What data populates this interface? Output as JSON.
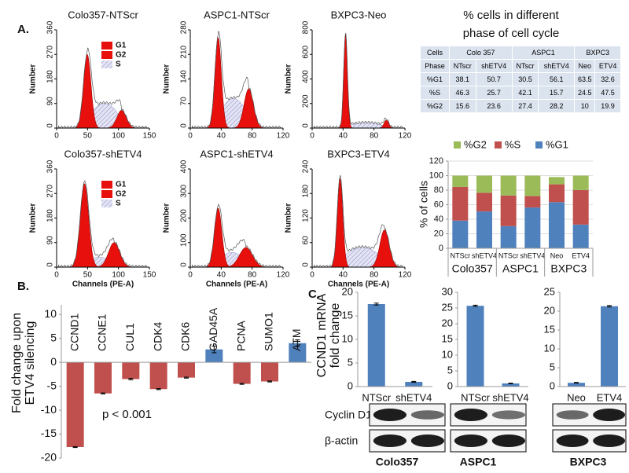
{
  "panel_labels": [
    "A.",
    "B.",
    "C."
  ],
  "flow_histograms": {
    "y_label": "Number",
    "x_label": "Channels (PE-A)",
    "legend": [
      "G1",
      "G2",
      "S"
    ],
    "panels": [
      {
        "title": "Colo357-NTScr",
        "yticks": [
          0,
          90,
          180,
          270,
          360
        ],
        "xticks": [
          0,
          50,
          100,
          150
        ],
        "show_legend": true,
        "show_x_label": false
      },
      {
        "title": "ASPC1-NTScr",
        "yticks": [
          0,
          70,
          140,
          210,
          280
        ],
        "xticks": [
          0,
          40,
          80,
          120
        ],
        "show_legend": false,
        "show_x_label": false
      },
      {
        "title": "BXPC3-Neo",
        "yticks": [
          0,
          200,
          400,
          600,
          800
        ],
        "xticks": [
          0,
          40,
          80,
          120
        ],
        "show_legend": false,
        "show_x_label": false
      },
      {
        "title": "Colo357-shETV4",
        "yticks": [
          0,
          90,
          180,
          270,
          360
        ],
        "xticks": [
          0,
          50,
          100,
          150
        ],
        "show_legend": true,
        "show_x_label": true
      },
      {
        "title": "ASPC1-shETV4",
        "yticks": [
          0,
          100,
          200,
          300,
          400
        ],
        "xticks": [
          0,
          40,
          80,
          120
        ],
        "show_legend": false,
        "show_x_label": true
      },
      {
        "title": "BXPC3-ETV4",
        "yticks": [
          0,
          60,
          120,
          180,
          240
        ],
        "xticks": [
          0,
          40,
          80,
          120
        ],
        "show_legend": false,
        "show_x_label": true
      }
    ]
  },
  "table": {
    "title": [
      "% cells in different",
      "phase of cell cycle"
    ],
    "header": [
      "Cells",
      "Colo 357",
      "ASPC1",
      "BXPC3"
    ],
    "subheader": [
      "Phase",
      "NTscr",
      "shETV4",
      "NTscr",
      "shETV4",
      "Neo",
      "ETV4"
    ],
    "rows": [
      [
        "%G1",
        "38.1",
        "50.7",
        "30.5",
        "56.1",
        "63.5",
        "32.6"
      ],
      [
        "%S",
        "46.3",
        "25.7",
        "42.1",
        "15.7",
        "24.5",
        "47.5"
      ],
      [
        "%G2",
        "15.6",
        "23.6",
        "27.4",
        "28.2",
        "10",
        "19.9"
      ]
    ]
  },
  "chart_data": [
    {
      "type": "stacked_bar",
      "y_label": "% of cells",
      "categories": [
        "NTScr",
        "shETV4",
        "NTScr",
        "shETV4",
        "Neo",
        "ETV4"
      ],
      "groups": [
        "Colo357",
        "ASPC1",
        "BXPC3"
      ],
      "series": [
        {
          "name": "%G1",
          "color": "#4f81bd",
          "values": [
            38.1,
            50.7,
            30.5,
            56.1,
            63.5,
            32.6
          ]
        },
        {
          "name": "%S",
          "color": "#c0504d",
          "values": [
            46.3,
            25.7,
            42.1,
            15.7,
            24.5,
            47.5
          ]
        },
        {
          "name": "%G2",
          "color": "#9bbb59",
          "values": [
            15.6,
            23.6,
            27.4,
            28.2,
            10,
            19.9
          ]
        }
      ],
      "ylim": [
        0,
        120
      ],
      "yticks": [
        0,
        20,
        40,
        60,
        80,
        100,
        120
      ]
    },
    {
      "type": "bar",
      "y_label": [
        "Fold change upon",
        "ETV4 silencing"
      ],
      "annotation": "p < 0.001",
      "categories": [
        "CCND1",
        "CCNE1",
        "CUL1",
        "CDK4",
        "CDK6",
        "GAD45A",
        "PCNA",
        "SUMO1",
        "ATM"
      ],
      "values": [
        -17.7,
        -6.5,
        -3.5,
        -5.6,
        -3.2,
        2.7,
        -4.5,
        -4,
        4
      ],
      "errors": [
        0.1,
        0.1,
        0.15,
        0.1,
        0.1,
        0.7,
        0.1,
        0.1,
        0.7
      ],
      "colors": [
        "#c0504d",
        "#c0504d",
        "#c0504d",
        "#c0504d",
        "#c0504d",
        "#4f81bd",
        "#c0504d",
        "#c0504d",
        "#4f81bd"
      ],
      "ylim": [
        -20,
        12
      ],
      "yticks": [
        -20,
        -15,
        -10,
        -5,
        0,
        5,
        10
      ]
    },
    {
      "type": "bar",
      "y_label": [
        "CCND1 mRNA",
        "fold change"
      ],
      "categories": [
        "NTScr",
        "shETV4"
      ],
      "values": [
        17.5,
        1
      ],
      "errors": [
        0.2,
        0.1
      ],
      "colors": [
        "#4f81bd",
        "#4f81bd"
      ],
      "ylim": [
        0,
        20
      ],
      "yticks": [
        0,
        5,
        10,
        15,
        20
      ]
    },
    {
      "type": "bar",
      "categories": [
        "NTScr",
        "shETV4"
      ],
      "values": [
        25.7,
        1
      ],
      "errors": [
        0.2,
        0.1
      ],
      "colors": [
        "#4f81bd",
        "#4f81bd"
      ],
      "ylim": [
        0,
        30
      ],
      "yticks": [
        0,
        5,
        10,
        15,
        20,
        25,
        30
      ]
    },
    {
      "type": "bar",
      "categories": [
        "Neo",
        "ETV4"
      ],
      "values": [
        1,
        21.3
      ],
      "errors": [
        0.1,
        0.2
      ],
      "colors": [
        "#4f81bd",
        "#4f81bd"
      ],
      "ylim": [
        0,
        25
      ],
      "yticks": [
        0,
        5,
        10,
        15,
        20,
        25
      ]
    }
  ],
  "blot": {
    "rows": [
      "Cyclin D1",
      "β-actin"
    ],
    "cell_lines": [
      "Colo357",
      "ASPC1",
      "BXPC3"
    ]
  }
}
